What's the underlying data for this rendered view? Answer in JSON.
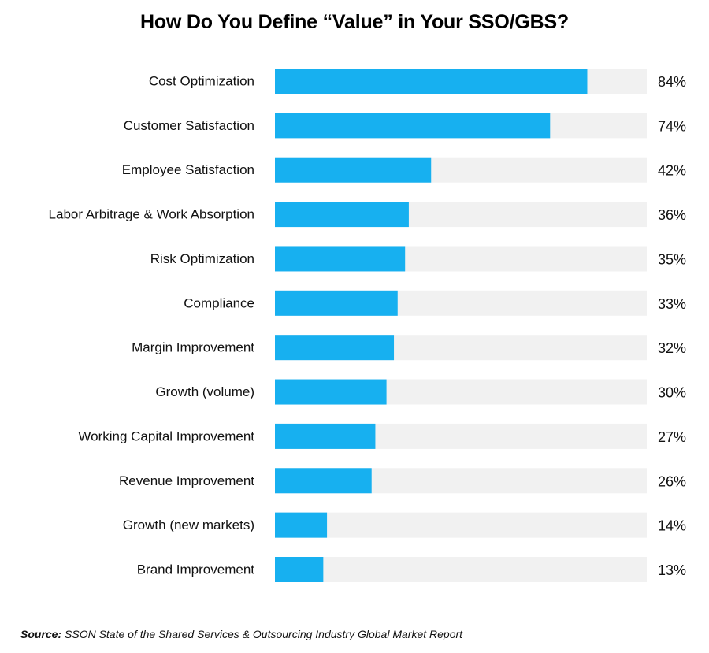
{
  "chart_data": {
    "type": "bar",
    "orientation": "horizontal",
    "title": "How Do You Define “Value” in Your SSO/GBS?",
    "categories": [
      "Cost Optimization",
      "Customer Satisfaction",
      "Employee Satisfaction",
      "Labor Arbitrage & Work Absorption",
      "Risk Optimization",
      "Compliance",
      "Margin Improvement",
      "Growth (volume)",
      "Working Capital Improvement",
      "Revenue Improvement",
      "Growth (new markets)",
      "Brand Improvement"
    ],
    "values": [
      84,
      74,
      42,
      36,
      35,
      33,
      32,
      30,
      27,
      26,
      14,
      13
    ],
    "value_labels": [
      "84%",
      "74%",
      "42%",
      "36%",
      "35%",
      "33%",
      "32%",
      "30%",
      "27%",
      "26%",
      "14%",
      "13%"
    ],
    "xlim": [
      0,
      100
    ],
    "unit": "%",
    "grid": false,
    "legend": "none",
    "colors": {
      "bar": "#17B0F0",
      "track": "#F1F1F1"
    }
  },
  "source": {
    "label": "Source:",
    "text": "SSON State of the Shared Services & Outsourcing Industry Global Market Report"
  }
}
